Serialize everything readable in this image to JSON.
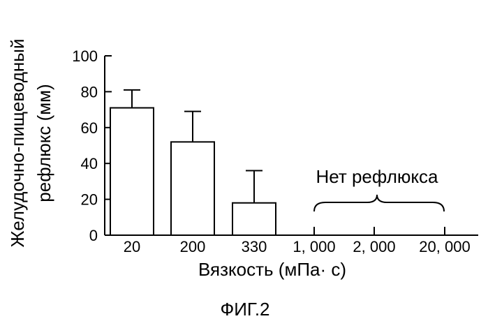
{
  "chart_data": {
    "type": "bar",
    "ylabel_line1": "Желудочно-пищеводный",
    "ylabel_line2": "рефлюкс (мм)",
    "xlabel": "Вязкость (мПа· с)",
    "categories": [
      "20",
      "200",
      "330",
      "1, 000",
      "2, 000",
      "20, 000"
    ],
    "values": [
      71,
      52,
      18,
      null,
      null,
      null
    ],
    "errors": [
      10,
      17,
      18,
      null,
      null,
      null
    ],
    "ylim": [
      0,
      100
    ],
    "yticks": [
      "0",
      "20",
      "40",
      "60",
      "80",
      "100"
    ],
    "annotation": "Нет рефлюкса",
    "grid": false
  },
  "caption": "ФИГ.2"
}
